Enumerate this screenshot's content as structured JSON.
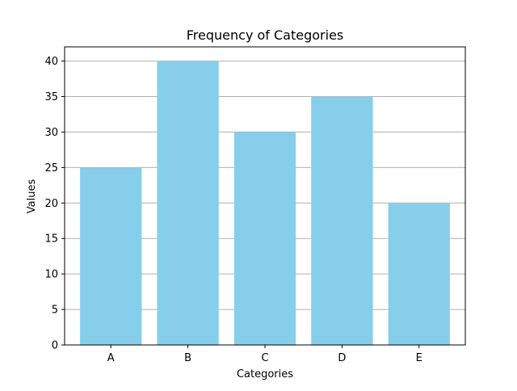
{
  "chart_data": {
    "type": "bar",
    "title": "Frequency of Categories",
    "xlabel": "Categories",
    "ylabel": "Values",
    "categories": [
      "A",
      "B",
      "C",
      "D",
      "E"
    ],
    "values": [
      25,
      40,
      30,
      35,
      20
    ],
    "ylim": [
      0,
      42
    ],
    "yticks": [
      0,
      5,
      10,
      15,
      20,
      25,
      30,
      35,
      40
    ],
    "grid": "y",
    "bar_color": "#87CEEB",
    "legend": "none"
  }
}
